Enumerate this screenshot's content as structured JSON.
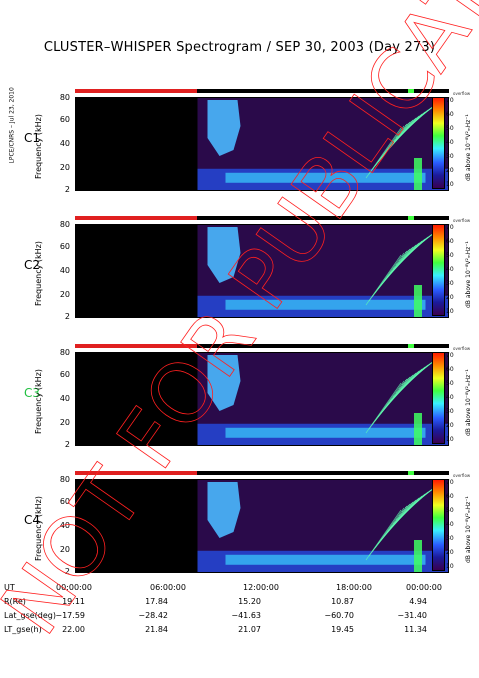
{
  "title": "CLUSTER–WHISPER Spectrogram / SEP 30, 2003 (Day 273)",
  "side_credit": "LPCE/CNRS – Jul 23, 2010",
  "panels": [
    {
      "id": "C1",
      "ylabel": "Frequency (kHz)",
      "label_color": "#000000"
    },
    {
      "id": "C2",
      "ylabel": "Frequency (kHz)",
      "label_color": "#000000"
    },
    {
      "id": "C3",
      "ylabel": "Frequency (kHz)",
      "label_color": "#20c040"
    },
    {
      "id": "C4",
      "ylabel": "Frequency (kHz)",
      "label_color": "#000000"
    }
  ],
  "colorbar": {
    "unit": "dB above 10⁻⁸V²ₘHz⁻¹",
    "ticks": [
      "70",
      "60",
      "50",
      "40",
      "30",
      "20",
      "10"
    ],
    "window": "overflow"
  },
  "watermark": "NOT FOR PUBLICATION",
  "chart_data": {
    "type": "heatmap",
    "x_axis": {
      "label": "UT",
      "ticks": [
        "00:00:00",
        "06:00:00",
        "12:00:00",
        "18:00:00",
        "00:00:00"
      ],
      "range_hours": [
        0,
        24
      ]
    },
    "y_axis": {
      "label": "Frequency (kHz)",
      "ticks": [
        "80",
        "60",
        "40",
        "20",
        "2"
      ],
      "range_khz": [
        2,
        80
      ]
    },
    "colorscale": {
      "min_db": 10,
      "max_db": 70
    },
    "data_gap_hours": [
      0,
      9.0
    ],
    "ephemeris": [
      {
        "key": "R(Re)",
        "values": [
          "19.11",
          "17.84",
          "15.20",
          "10.87",
          "4.94"
        ]
      },
      {
        "key": "Lat_gse(deg)",
        "values": [
          "−17.59",
          "−28.42",
          "−41.63",
          "−60.70",
          "−31.40"
        ]
      },
      {
        "key": "LT_gse(h)",
        "values": [
          "22.00",
          "21.84",
          "21.07",
          "19.45",
          "11.34"
        ]
      }
    ],
    "series": [
      {
        "name": "C1",
        "noise_band_khz": [
          2,
          20
        ]
      },
      {
        "name": "C2",
        "noise_band_khz": [
          2,
          20
        ]
      },
      {
        "name": "C3",
        "noise_band_khz": [
          2,
          20
        ]
      },
      {
        "name": "C4",
        "noise_band_khz": [
          2,
          20
        ]
      }
    ]
  }
}
